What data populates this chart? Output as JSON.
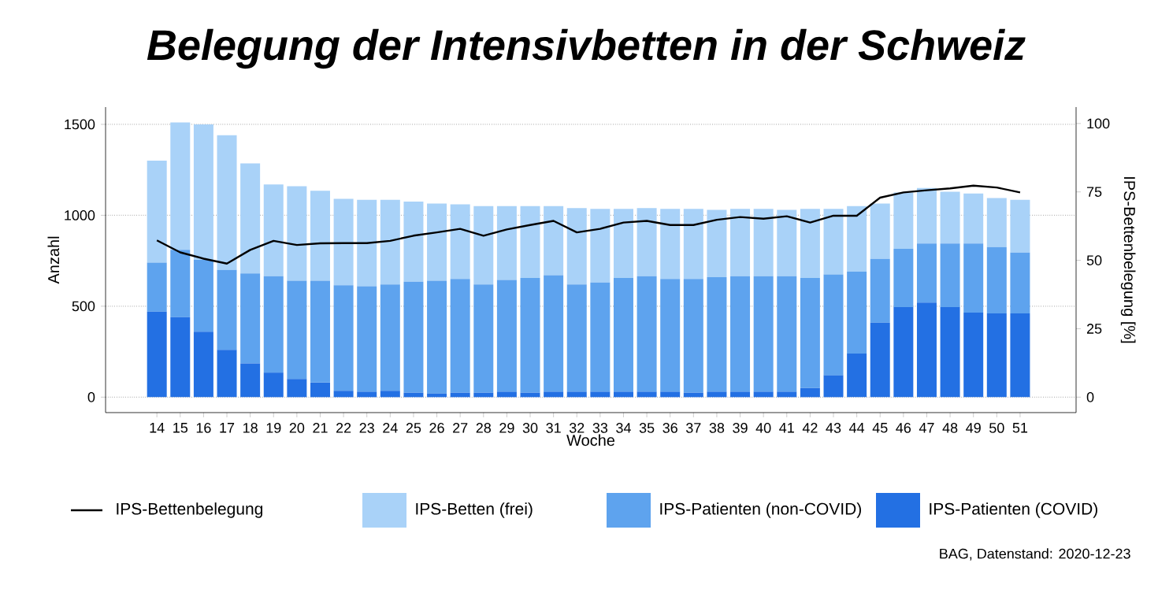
{
  "chart_data": {
    "type": "bar",
    "stacked": true,
    "title": "Belegung der Intensivbetten in der Schweiz",
    "xlabel": "Woche",
    "ylabel": "Anzahl",
    "y2label": "IPS-Bettenbelegung [%]",
    "categories": [
      "14",
      "15",
      "16",
      "17",
      "18",
      "19",
      "20",
      "21",
      "22",
      "23",
      "24",
      "25",
      "26",
      "27",
      "28",
      "29",
      "30",
      "31",
      "32",
      "33",
      "34",
      "35",
      "36",
      "37",
      "38",
      "39",
      "40",
      "41",
      "42",
      "43",
      "44",
      "45",
      "46",
      "47",
      "48",
      "49",
      "50",
      "51"
    ],
    "series": [
      {
        "name": "IPS-Patienten (COVID)",
        "color": "#2370e3",
        "values": [
          470,
          440,
          360,
          260,
          185,
          135,
          100,
          80,
          35,
          30,
          35,
          25,
          20,
          25,
          25,
          30,
          25,
          30,
          30,
          30,
          30,
          30,
          30,
          25,
          30,
          30,
          30,
          30,
          50,
          120,
          240,
          410,
          495,
          520,
          495,
          465,
          460,
          460
        ]
      },
      {
        "name": "IPS-Patienten (non-COVID)",
        "color": "#5ea3ee",
        "values": [
          270,
          370,
          395,
          440,
          495,
          530,
          540,
          560,
          580,
          580,
          585,
          610,
          620,
          625,
          595,
          615,
          630,
          640,
          590,
          600,
          625,
          635,
          620,
          625,
          630,
          635,
          635,
          635,
          605,
          555,
          450,
          350,
          320,
          325,
          350,
          380,
          365,
          335
        ]
      },
      {
        "name": "IPS-Betten (frei)",
        "color": "#a9d2f8",
        "values": [
          560,
          700,
          745,
          740,
          605,
          505,
          520,
          495,
          475,
          475,
          465,
          440,
          425,
          410,
          430,
          405,
          395,
          380,
          420,
          405,
          380,
          375,
          385,
          385,
          370,
          370,
          370,
          365,
          380,
          360,
          360,
          305,
          310,
          305,
          285,
          275,
          270,
          290
        ]
      },
      {
        "name": "IPS-Bettenbelegung",
        "type": "line",
        "axis": "y2",
        "color": "#000000",
        "values": [
          57.3,
          52.9,
          50.6,
          48.8,
          53.8,
          57.1,
          55.6,
          56.2,
          56.3,
          56.3,
          57.1,
          59.0,
          60.2,
          61.5,
          59.0,
          61.3,
          62.9,
          64.4,
          60.2,
          61.5,
          63.8,
          64.4,
          62.9,
          62.9,
          64.8,
          65.8,
          65.2,
          66.1,
          63.8,
          66.3,
          66.3,
          72.9,
          74.8,
          75.6,
          76.3,
          77.3,
          76.6,
          74.8
        ]
      }
    ],
    "ylim": [
      -85,
      1595
    ],
    "yticks": [
      0,
      500,
      1000,
      1500
    ],
    "y2lim": [
      -5.65,
      106
    ],
    "y2ticks": [
      0,
      25,
      50,
      75,
      100
    ],
    "grid": "y",
    "legend": "bottom",
    "annotations": [
      "BAG, Datenstand: 2020-12-23"
    ]
  }
}
